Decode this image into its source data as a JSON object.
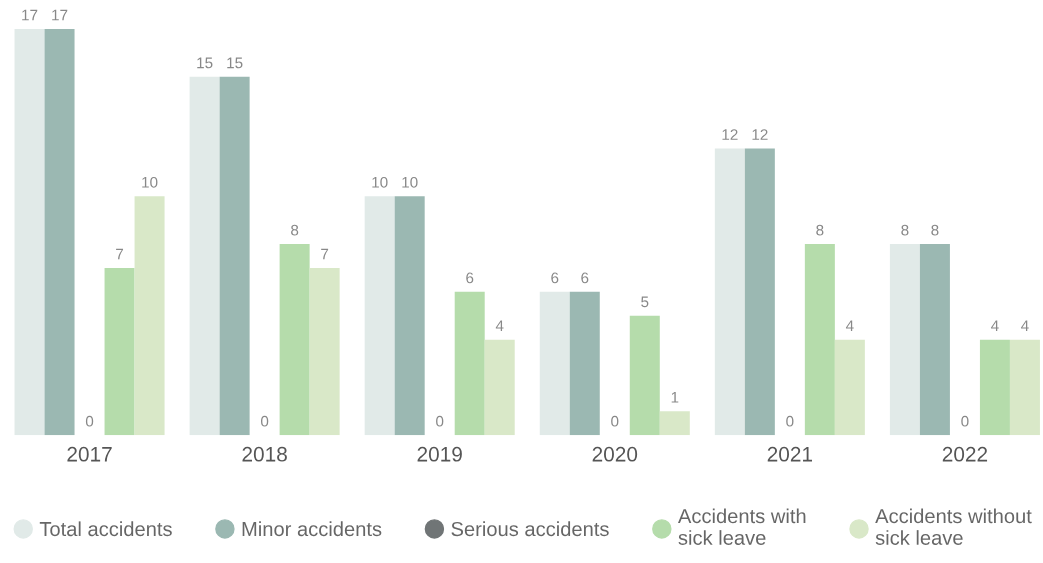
{
  "chart_data": {
    "type": "bar",
    "categories": [
      "2017",
      "2018",
      "2019",
      "2020",
      "2021",
      "2022"
    ],
    "series": [
      {
        "name": "Total accidents",
        "color": "#e1eae8",
        "values": [
          17,
          15,
          10,
          6,
          12,
          8
        ]
      },
      {
        "name": "Minor accidents",
        "color": "#9bb8b2",
        "values": [
          17,
          15,
          10,
          6,
          12,
          8
        ]
      },
      {
        "name": "Serious accidents",
        "color": "#707576",
        "values": [
          0,
          0,
          0,
          0,
          0,
          0
        ]
      },
      {
        "name": "Accidents with\nsick leave",
        "color": "#b5dcab",
        "values": [
          7,
          8,
          6,
          5,
          8,
          4
        ]
      },
      {
        "name": "Accidents without\nsick leave",
        "color": "#d9e8c8",
        "values": [
          10,
          7,
          4,
          1,
          4,
          4
        ]
      }
    ],
    "data_labels": true,
    "legend": "bottom",
    "tick_labels": "x",
    "grid": false
  }
}
